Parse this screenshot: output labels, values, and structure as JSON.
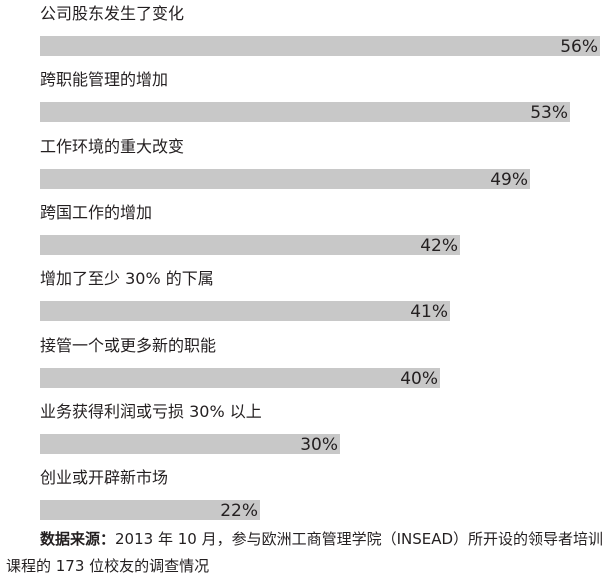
{
  "chart_data": {
    "type": "bar",
    "orientation": "horizontal",
    "categories": [
      "公司股东发生了变化",
      "跨职能管理的增加",
      "工作环境的重大改变",
      "跨国工作的增加",
      "增加了至少 30% 的下属",
      "接管一个或更多新的职能",
      "业务获得利润或亏损 30% 以上",
      "创业或开辟新市场"
    ],
    "values": [
      56,
      53,
      49,
      42,
      41,
      40,
      30,
      22
    ],
    "value_labels": [
      "56%",
      "53%",
      "49%",
      "42%",
      "41%",
      "40%",
      "30%",
      "22%"
    ],
    "unit": "%",
    "xlim": [
      0,
      56
    ],
    "grid": false,
    "legend": "none",
    "bar_color": "#c8c8c8"
  },
  "source": {
    "prefix": "数据来源：",
    "text": "2013 年 10 月，参与欧洲工商管理学院（INSEAD）所开设的领导者培训课程的 173 位校友的调查情况"
  }
}
